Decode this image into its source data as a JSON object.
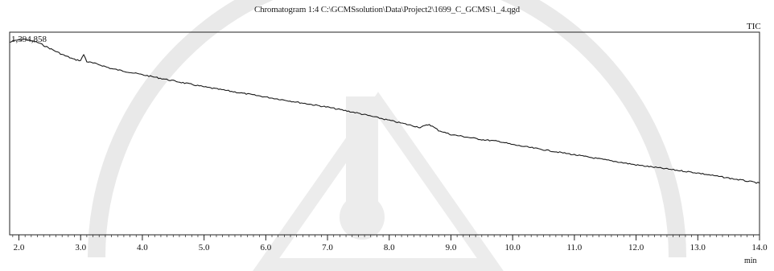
{
  "chart_data": {
    "type": "line",
    "title": "Chromatogram 1:4 C:\\GCMSsolution\\Data\\Project2\\1699_C_GCMS\\1_4.qgd",
    "signal_label": "TIC",
    "max_intensity_label": "1,394,858",
    "xlabel": "min",
    "ylabel": "",
    "xlim": [
      1.85,
      14.0
    ],
    "ylim": [
      0,
      1.0
    ],
    "x_ticks": [
      2.0,
      3.0,
      4.0,
      5.0,
      6.0,
      7.0,
      8.0,
      9.0,
      10.0,
      11.0,
      12.0,
      13.0,
      14.0
    ],
    "x_tick_labels": [
      "2.0",
      "3.0",
      "4.0",
      "5.0",
      "6.0",
      "7.0",
      "8.0",
      "9.0",
      "10.0",
      "11.0",
      "12.0",
      "13.0",
      "14.0"
    ],
    "grid": false,
    "line_color": "#1a1a1a",
    "series": [
      {
        "x": [
          1.85,
          1.95,
          2.1,
          2.3,
          2.5,
          2.7,
          2.9,
          3.0,
          3.05,
          3.1,
          3.3,
          3.5,
          4.0,
          4.5,
          5.0,
          5.5,
          6.0,
          6.5,
          7.0,
          7.5,
          8.0,
          8.5,
          8.65,
          8.7,
          8.8,
          9.0,
          9.5,
          9.8,
          10.0,
          10.5,
          11.0,
          11.5,
          12.0,
          12.5,
          13.0,
          13.5,
          14.0
        ],
        "y": [
          0.95,
          0.96,
          0.965,
          0.95,
          0.92,
          0.89,
          0.865,
          0.86,
          0.89,
          0.855,
          0.84,
          0.82,
          0.79,
          0.76,
          0.73,
          0.705,
          0.68,
          0.655,
          0.63,
          0.6,
          0.565,
          0.53,
          0.545,
          0.535,
          0.515,
          0.495,
          0.47,
          0.46,
          0.445,
          0.42,
          0.395,
          0.37,
          0.345,
          0.325,
          0.305,
          0.28,
          0.255
        ]
      }
    ]
  }
}
